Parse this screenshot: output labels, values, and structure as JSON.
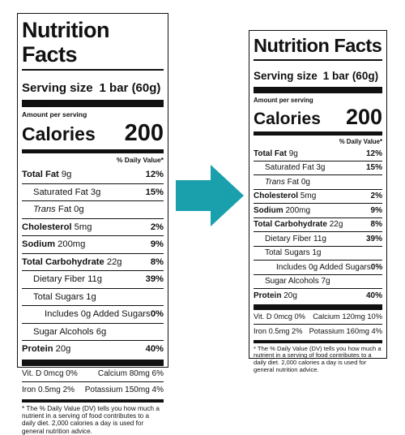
{
  "colors": {
    "arrow": "#1aa0ad",
    "ink": "#111111"
  },
  "left": {
    "title": "Nutrition Facts",
    "serving_label": "Serving size",
    "serving_value": "1 bar (60g)",
    "amount_per_serving": "Amount per serving",
    "calories_label": "Calories",
    "calories_value": "200",
    "dv_header": "% Daily Value*",
    "nutrients": [
      {
        "name": "Total Fat",
        "amount": "9g",
        "dv": "12%"
      },
      {
        "name": "Saturated Fat",
        "amount": "3g",
        "dv": "15%"
      },
      {
        "name_italic": "Trans",
        "name": "Fat",
        "amount": "0g",
        "dv": ""
      },
      {
        "name": "Cholesterol",
        "amount": "5mg",
        "dv": "2%"
      },
      {
        "name": "Sodium",
        "amount": "200mg",
        "dv": "9%"
      },
      {
        "name": "Total Carbohydrate",
        "amount": "22g",
        "dv": "8%"
      },
      {
        "name": "Dietary Fiber",
        "amount": "11g",
        "dv": "39%"
      },
      {
        "name": "Total Sugars",
        "amount": "1g",
        "dv": ""
      },
      {
        "name": "Includes 0g Added Sugars",
        "amount": "",
        "dv": "0%"
      },
      {
        "name": "Sugar Alcohols",
        "amount": "6g",
        "dv": ""
      },
      {
        "name": "Protein",
        "amount": "20g",
        "dv": "40%"
      }
    ],
    "vitamins": [
      {
        "a": "Vit. D 0mcg 0%",
        "b": "Calcium 80mg 6%"
      },
      {
        "a": "Iron 0.5mg 2%",
        "b": "Potassium 150mg 4%"
      }
    ],
    "footnote": "* The % Daily Value (DV) tells you how much a nutrient in a serving of food contributes to a daily diet. 2,000 calories a day is used for general nutrition advice."
  },
  "right": {
    "title": "Nutrition Facts",
    "serving_label": "Serving size",
    "serving_value": "1 bar (60g)",
    "amount_per_serving": "Amount per serving",
    "calories_label": "Calories",
    "calories_value": "200",
    "dv_header": "% Daily Value*",
    "nutrients": [
      {
        "name": "Total Fat",
        "amount": "9g",
        "dv": "12%"
      },
      {
        "name": "Saturated Fat",
        "amount": "3g",
        "dv": "15%"
      },
      {
        "name_italic": "Trans",
        "name": "Fat",
        "amount": "0g",
        "dv": ""
      },
      {
        "name": "Cholesterol",
        "amount": "5mg",
        "dv": "2%"
      },
      {
        "name": "Sodium",
        "amount": "200mg",
        "dv": "9%"
      },
      {
        "name": "Total Carbohydrate",
        "amount": "22g",
        "dv": "8%"
      },
      {
        "name": "Dietary Fiber",
        "amount": "11g",
        "dv": "39%"
      },
      {
        "name": "Total Sugars",
        "amount": "1g",
        "dv": ""
      },
      {
        "name": "Includes 0g Added Sugars",
        "amount": "",
        "dv": "0%"
      },
      {
        "name": "Sugar Alcohols",
        "amount": "7g",
        "dv": ""
      },
      {
        "name": "Protein",
        "amount": "20g",
        "dv": "40%"
      }
    ],
    "vitamins": [
      {
        "a": "Vit. D 0mcg 0%",
        "b": "Calcium 120mg 10%"
      },
      {
        "a": "Iron 0.5mg 2%",
        "b": "Potassium 160mg 4%"
      }
    ],
    "footnote": "* The % Daily Value (DV) tells you how much a nutrient in a serving of food contributes to a daily diet. 2,000 calories a day is used for general nutrition advice."
  }
}
